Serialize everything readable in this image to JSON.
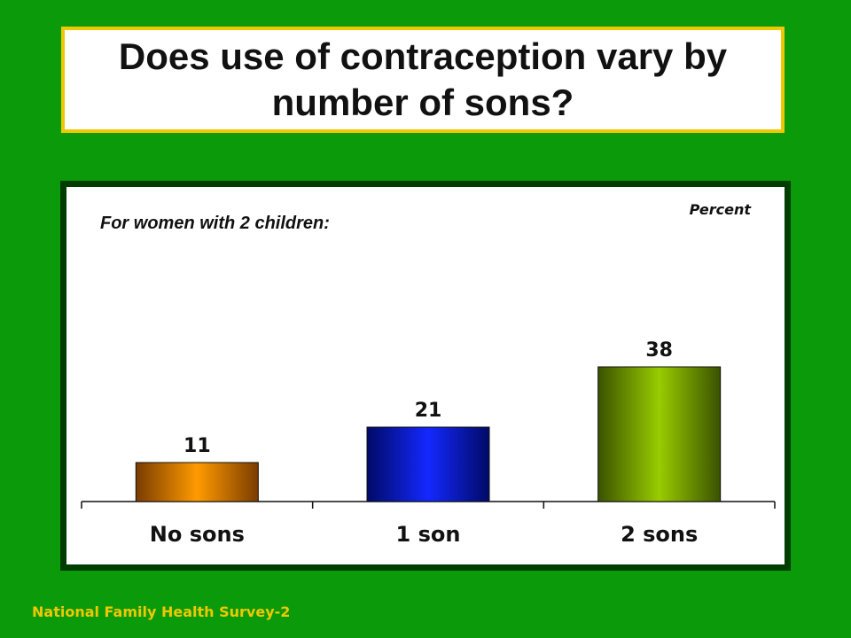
{
  "title": "Does use of contraception vary by number of sons?",
  "footer": "National Family Health Survey-2",
  "colors": {
    "background": "#0a9a0a",
    "title_border": "#f0c800",
    "footer_text": "#f0c800"
  },
  "chart_data": {
    "type": "bar",
    "subtitle": "For women with 2 children:",
    "unit_label": "Percent",
    "categories": [
      "No sons",
      "1 son",
      "2 sons"
    ],
    "values": [
      11,
      21,
      38
    ],
    "bar_colors": [
      {
        "light": "#ff9a00",
        "dark": "#7a3c00"
      },
      {
        "light": "#1428ff",
        "dark": "#000a66"
      },
      {
        "light": "#99cc00",
        "dark": "#3a5200"
      }
    ],
    "ylim": [
      0,
      45
    ],
    "grid": false,
    "legend": "none"
  }
}
